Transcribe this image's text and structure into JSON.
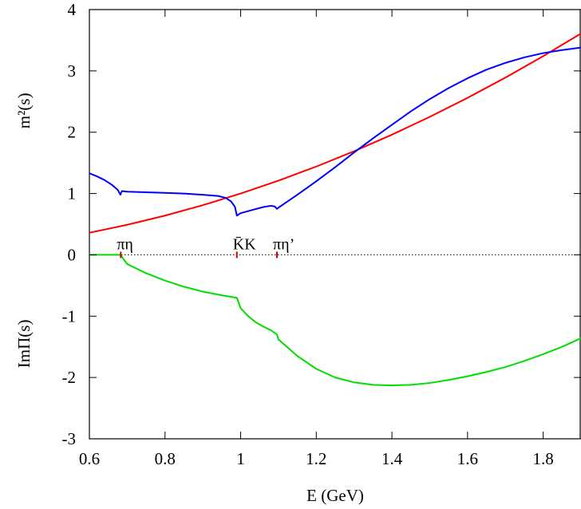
{
  "chart_data": {
    "type": "line",
    "title": "",
    "xlabel": "E (GeV)",
    "ylabel_upper": "m²(s)",
    "ylabel_lower": "ImΠ(s)",
    "xlim": [
      0.6,
      1.9
    ],
    "ylim": [
      -3,
      4
    ],
    "x_ticks": [
      0.6,
      0.8,
      1.0,
      1.2,
      1.4,
      1.6,
      1.8
    ],
    "x_tick_labels": [
      "0.6",
      "0.8",
      "1",
      "1.2",
      "1.4",
      "1.6",
      "1.8"
    ],
    "y_ticks": [
      -3,
      -2,
      -1,
      0,
      1,
      2,
      3,
      4
    ],
    "y_tick_labels": [
      "-3",
      "-2",
      "-1",
      "0",
      "1",
      "2",
      "3",
      "4"
    ],
    "grid": false,
    "zero_line": {
      "y": 0,
      "style": "dotted",
      "color": "#000000"
    },
    "threshold_markers": [
      {
        "x": 0.683,
        "label": "πη",
        "color": "#cc0000"
      },
      {
        "x": 0.99,
        "label": "K̄K",
        "color": "#cc0000"
      },
      {
        "x": 1.096,
        "label": "πη’",
        "color": "#cc0000"
      }
    ],
    "series": [
      {
        "color": "#ff0000",
        "x": [
          0.6,
          0.7,
          0.8,
          0.9,
          1.0,
          1.1,
          1.2,
          1.3,
          1.4,
          1.5,
          1.6,
          1.7,
          1.8,
          1.9
        ],
        "y": [
          0.36,
          0.49,
          0.64,
          0.81,
          1.0,
          1.21,
          1.44,
          1.69,
          1.96,
          2.25,
          2.56,
          2.89,
          3.24,
          3.61
        ]
      },
      {
        "color": "#0000ff",
        "x": [
          0.6,
          0.62,
          0.64,
          0.66,
          0.675,
          0.682,
          0.683,
          0.686,
          0.7,
          0.75,
          0.8,
          0.85,
          0.9,
          0.94,
          0.96,
          0.975,
          0.985,
          0.99,
          1.0,
          1.03,
          1.06,
          1.08,
          1.09,
          1.096,
          1.1,
          1.15,
          1.2,
          1.25,
          1.3,
          1.35,
          1.4,
          1.45,
          1.5,
          1.55,
          1.6,
          1.65,
          1.7,
          1.75,
          1.8,
          1.85,
          1.9
        ],
        "y": [
          1.33,
          1.28,
          1.22,
          1.14,
          1.06,
          0.98,
          1.0,
          1.04,
          1.03,
          1.02,
          1.01,
          1.0,
          0.98,
          0.96,
          0.93,
          0.87,
          0.78,
          0.64,
          0.68,
          0.73,
          0.78,
          0.8,
          0.79,
          0.75,
          0.77,
          0.98,
          1.2,
          1.43,
          1.67,
          1.9,
          2.12,
          2.34,
          2.54,
          2.72,
          2.88,
          3.02,
          3.13,
          3.22,
          3.29,
          3.34,
          3.38
        ]
      },
      {
        "color": "#00dd00",
        "x": [
          0.6,
          0.65,
          0.683,
          0.69,
          0.7,
          0.75,
          0.8,
          0.85,
          0.9,
          0.95,
          0.99,
          1.0,
          1.02,
          1.04,
          1.06,
          1.08,
          1.096,
          1.1,
          1.15,
          1.2,
          1.25,
          1.3,
          1.35,
          1.4,
          1.45,
          1.5,
          1.55,
          1.6,
          1.65,
          1.7,
          1.75,
          1.8,
          1.85,
          1.9
        ],
        "y": [
          0.0,
          0.0,
          0.0,
          -0.07,
          -0.15,
          -0.3,
          -0.42,
          -0.52,
          -0.6,
          -0.66,
          -0.7,
          -0.87,
          -1.0,
          -1.1,
          -1.17,
          -1.23,
          -1.3,
          -1.38,
          -1.65,
          -1.86,
          -2.0,
          -2.08,
          -2.12,
          -2.13,
          -2.12,
          -2.09,
          -2.04,
          -1.98,
          -1.91,
          -1.83,
          -1.73,
          -1.62,
          -1.5,
          -1.36
        ]
      }
    ]
  }
}
